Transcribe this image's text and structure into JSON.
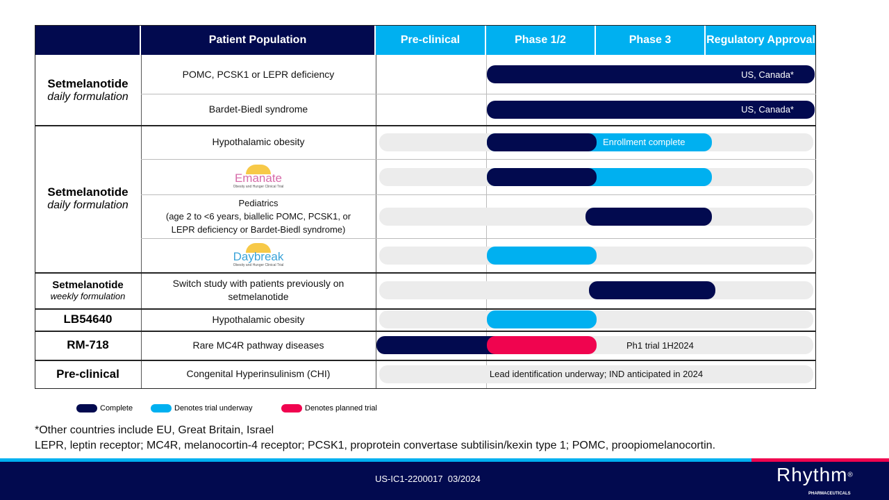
{
  "colors": {
    "complete": "#020a4f",
    "underway": "#00b0f0",
    "planned": "#f0044f",
    "track": "#ececec"
  },
  "header": {
    "population": "Patient Population",
    "phases": [
      "Pre-clinical",
      "Phase 1/2",
      "Phase 3",
      "Regulatory Approval"
    ]
  },
  "groups": [
    {
      "name": "Setmelanotide",
      "sub": "daily formulation"
    },
    {
      "name": "Setmelanotide",
      "sub": "daily formulation"
    },
    {
      "name": "Setmelanotide",
      "sub": "weekly formulation"
    },
    {
      "name": "LB54640",
      "sub": ""
    },
    {
      "name": "RM-718",
      "sub": ""
    },
    {
      "name": "Pre-clinical",
      "sub": ""
    }
  ],
  "rows": [
    {
      "population": "POMC, PCSK1 or LEPR deficiency",
      "track": false,
      "bars": [
        {
          "status": "complete",
          "start": 1.0,
          "end": 4.0,
          "label": "US, Canada*"
        }
      ]
    },
    {
      "population": "Bardet-Biedl syndrome",
      "track": false,
      "bars": [
        {
          "status": "complete",
          "start": 1.0,
          "end": 4.0,
          "label": "US, Canada*"
        }
      ]
    },
    {
      "population": "Hypothalamic obesity",
      "track": true,
      "bars": [
        {
          "status": "underway",
          "start": 1.0,
          "end": 3.05,
          "label": "Enrollment complete"
        },
        {
          "status": "complete",
          "start": 1.0,
          "end": 2.0
        }
      ]
    },
    {
      "population": "",
      "logo": {
        "title": "Emanate",
        "tagline": "Obesity and Hunger Clinical Trial"
      },
      "track": true,
      "bars": [
        {
          "status": "underway",
          "start": 1.0,
          "end": 3.05
        },
        {
          "status": "complete",
          "start": 1.0,
          "end": 2.0
        }
      ]
    },
    {
      "population": "Pediatrics\n(age 2 to <6 years, biallelic POMC, PCSK1, or LEPR deficiency or Bardet-Biedl syndrome)",
      "track": true,
      "bars": [
        {
          "status": "complete",
          "start": 1.9,
          "end": 3.05
        }
      ]
    },
    {
      "population": "",
      "logo": {
        "title": "Daybreak",
        "tagline": "Obesity and Hunger Clinical Trial"
      },
      "track": true,
      "bars": [
        {
          "status": "underway",
          "start": 1.0,
          "end": 2.0
        }
      ]
    },
    {
      "population": "Switch study with patients previously on setmelanotide",
      "track": true,
      "bars": [
        {
          "status": "complete",
          "start": 1.93,
          "end": 3.08
        }
      ]
    },
    {
      "population": "Hypothalamic obesity",
      "track": true,
      "bars": [
        {
          "status": "underway",
          "start": 1.0,
          "end": 2.0
        }
      ]
    },
    {
      "population": "Rare MC4R pathway diseases",
      "track": true,
      "note": "Ph1 trial 1H2024",
      "bars": [
        {
          "status": "complete",
          "start": 0.0,
          "end": 1.2
        },
        {
          "status": "planned",
          "start": 1.0,
          "end": 2.0
        }
      ]
    },
    {
      "population": "Congenital Hyperinsulinism (CHI)",
      "track": true,
      "note_center": "Lead identification underway; IND anticipated in 2024",
      "bars": []
    }
  ],
  "legend": [
    {
      "status": "complete",
      "label": "Complete"
    },
    {
      "status": "underway",
      "label": "Denotes trial underway"
    },
    {
      "status": "planned",
      "label": "Denotes planned trial"
    }
  ],
  "footnotes": [
    "*Other countries include EU, Great Britain, Israel",
    "LEPR, leptin receptor; MC4R, melanocortin-4 receptor; PCSK1, proprotein convertase subtilisin/kexin type 1; POMC, proopiomelanocortin."
  ],
  "footer": {
    "code": "US-IC1-2200017  03/2024",
    "logo": "Rhythm",
    "logo_mark": "®",
    "logo_sub": "PHARMACEUTICALS"
  }
}
